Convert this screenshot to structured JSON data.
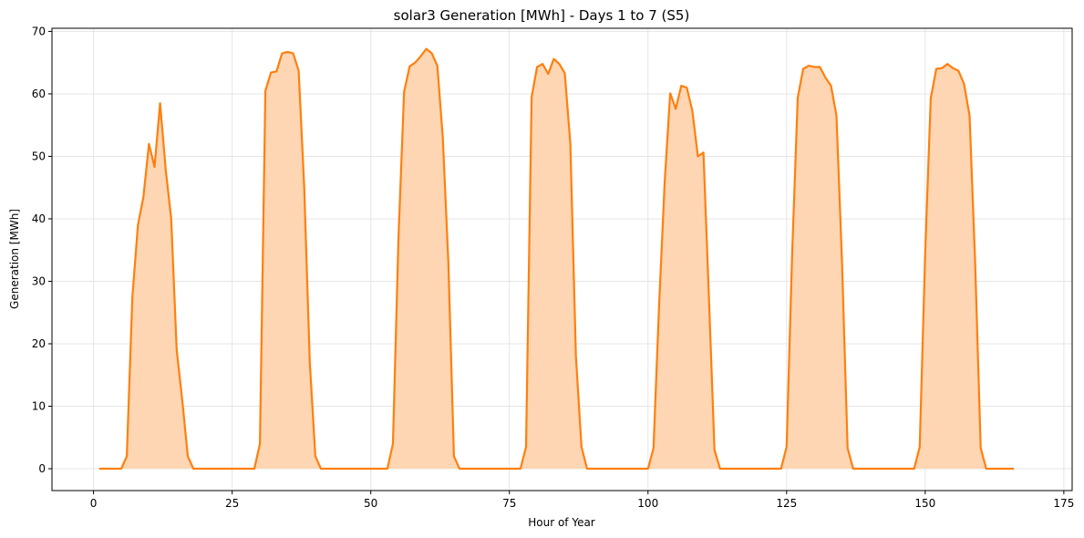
{
  "chart_data": {
    "type": "area",
    "title": "solar3 Generation [MWh] - Days 1 to 7 (S5)",
    "xlabel": "Hour of Year",
    "ylabel": "Generation [MWh]",
    "xlim": [
      -7.5,
      176.5
    ],
    "ylim": [
      -3.5,
      70.5
    ],
    "xticks": [
      0,
      25,
      50,
      75,
      100,
      125,
      150,
      175
    ],
    "yticks": [
      0,
      10,
      20,
      30,
      40,
      50,
      60,
      70
    ],
    "grid": true,
    "legend": null,
    "colors": {
      "line": "#ff7f0e",
      "fill": "#ffd6b3",
      "grid": "#e5e5e5"
    },
    "x_start": 1,
    "values": [
      0,
      0,
      0,
      0,
      0,
      2,
      27.5,
      39,
      43.5,
      52,
      48.3,
      58.5,
      48,
      40,
      19,
      11,
      2,
      0,
      0,
      0,
      0,
      0,
      0,
      0,
      0,
      0,
      0,
      0,
      0,
      4,
      60.5,
      63.4,
      63.6,
      66.5,
      66.7,
      66.5,
      63.7,
      45,
      17,
      2,
      0,
      0,
      0,
      0,
      0,
      0,
      0,
      0,
      0,
      0,
      0,
      0,
      0,
      4,
      37,
      60.3,
      64.4,
      65,
      66,
      67.2,
      66.5,
      64.5,
      53,
      33,
      2,
      0,
      0,
      0,
      0,
      0,
      0,
      0,
      0,
      0,
      0,
      0,
      0,
      3.5,
      59.5,
      64.3,
      64.8,
      63.2,
      65.6,
      64.8,
      63.3,
      52,
      18,
      3.5,
      0,
      0,
      0,
      0,
      0,
      0,
      0,
      0,
      0,
      0,
      0,
      0,
      3.3,
      26,
      45.7,
      60.1,
      57.6,
      61.3,
      61,
      57.3,
      50,
      50.6,
      27,
      3,
      0,
      0,
      0,
      0,
      0,
      0,
      0,
      0,
      0,
      0,
      0,
      0,
      3.5,
      34.5,
      59.4,
      64,
      64.5,
      64.3,
      64.3,
      62.6,
      61.3,
      56.5,
      33,
      3.3,
      0,
      0,
      0,
      0,
      0,
      0,
      0,
      0,
      0,
      0,
      0,
      0,
      3.5,
      34.5,
      59.3,
      64,
      64.1,
      64.8,
      64.1,
      63.7,
      61.6,
      56.5,
      33,
      3.3,
      0,
      0,
      0,
      0,
      0,
      0
    ]
  }
}
